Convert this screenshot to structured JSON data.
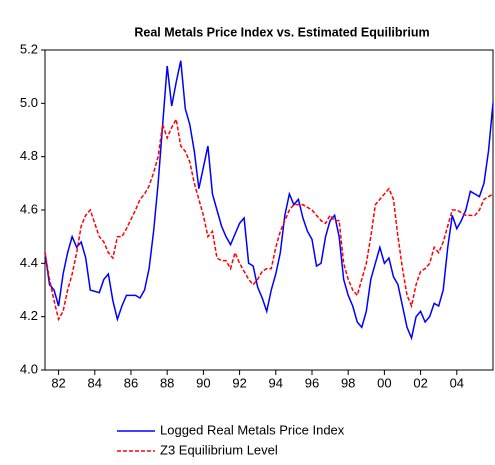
{
  "chart_data": {
    "type": "line",
    "title": "Real Metals Price Index vs. Estimated Equilibrium",
    "x": [
      1981.25,
      1981.5,
      1981.75,
      1982.0,
      1982.25,
      1982.5,
      1982.75,
      1983.0,
      1983.25,
      1983.5,
      1983.75,
      1984.25,
      1984.5,
      1984.75,
      1985.0,
      1985.25,
      1985.5,
      1985.75,
      1986.25,
      1986.5,
      1986.75,
      1987.0,
      1987.25,
      1987.5,
      1987.75,
      1988.0,
      1988.25,
      1988.5,
      1988.75,
      1989.0,
      1989.25,
      1989.5,
      1989.75,
      1990.0,
      1990.25,
      1990.5,
      1990.75,
      1991.0,
      1991.25,
      1991.5,
      1991.75,
      1992.0,
      1992.25,
      1992.5,
      1992.75,
      1993.0,
      1993.25,
      1993.5,
      1993.75,
      1994.0,
      1994.25,
      1994.5,
      1994.75,
      1995.0,
      1995.25,
      1995.5,
      1995.75,
      1996.0,
      1996.25,
      1996.5,
      1996.75,
      1997.0,
      1997.25,
      1997.5,
      1997.75,
      1998.0,
      1998.25,
      1998.5,
      1998.75,
      1999.0,
      1999.25,
      1999.5,
      1999.75,
      2000.0,
      2000.25,
      2000.5,
      2000.75,
      2001.0,
      2001.25,
      2001.5,
      2001.75,
      2002.0,
      2002.25,
      2002.5,
      2002.75,
      2003.0,
      2003.25,
      2003.5,
      2003.75,
      2004.0,
      2004.25,
      2004.5,
      2004.75,
      2005.0,
      2005.25,
      2005.5,
      2005.75,
      2006.0
    ],
    "series": [
      {
        "name": "Logged Real Metals Price Index",
        "color": "#0000ff",
        "dashed": false,
        "values": [
          4.44,
          4.32,
          4.3,
          4.24,
          4.36,
          4.44,
          4.5,
          4.46,
          4.48,
          4.42,
          4.3,
          4.29,
          4.34,
          4.36,
          4.26,
          4.19,
          4.24,
          4.28,
          4.28,
          4.27,
          4.3,
          4.38,
          4.52,
          4.7,
          4.92,
          5.14,
          4.99,
          5.08,
          5.16,
          4.98,
          4.92,
          4.82,
          4.68,
          4.76,
          4.84,
          4.66,
          4.6,
          4.54,
          4.5,
          4.47,
          4.51,
          4.55,
          4.57,
          4.4,
          4.39,
          4.31,
          4.27,
          4.22,
          4.3,
          4.36,
          4.44,
          4.58,
          4.66,
          4.62,
          4.64,
          4.57,
          4.52,
          4.49,
          4.39,
          4.4,
          4.5,
          4.56,
          4.58,
          4.5,
          4.34,
          4.28,
          4.24,
          4.18,
          4.16,
          4.22,
          4.34,
          4.4,
          4.46,
          4.4,
          4.42,
          4.35,
          4.32,
          4.24,
          4.16,
          4.12,
          4.2,
          4.22,
          4.18,
          4.2,
          4.25,
          4.24,
          4.3,
          4.46,
          4.58,
          4.53,
          4.56,
          4.6,
          4.67,
          4.66,
          4.65,
          4.7,
          4.82,
          5.0
        ]
      },
      {
        "name": "Z3 Equilibrium Level",
        "color": "#ff0000",
        "dashed": true,
        "values": [
          4.44,
          4.34,
          4.26,
          4.19,
          4.22,
          4.3,
          4.36,
          4.44,
          4.54,
          4.58,
          4.6,
          4.5,
          4.48,
          4.44,
          4.42,
          4.5,
          4.5,
          4.53,
          4.6,
          4.64,
          4.66,
          4.69,
          4.74,
          4.8,
          4.92,
          4.87,
          4.91,
          4.94,
          4.84,
          4.82,
          4.78,
          4.7,
          4.64,
          4.58,
          4.5,
          4.52,
          4.42,
          4.41,
          4.41,
          4.38,
          4.44,
          4.4,
          4.37,
          4.34,
          4.32,
          4.34,
          4.37,
          4.38,
          4.38,
          4.46,
          4.52,
          4.56,
          4.6,
          4.62,
          4.62,
          4.62,
          4.61,
          4.6,
          4.58,
          4.56,
          4.55,
          4.58,
          4.56,
          4.56,
          4.4,
          4.34,
          4.3,
          4.28,
          4.34,
          4.4,
          4.5,
          4.62,
          4.64,
          4.66,
          4.68,
          4.64,
          4.5,
          4.38,
          4.28,
          4.24,
          4.32,
          4.37,
          4.38,
          4.4,
          4.46,
          4.44,
          4.48,
          4.54,
          4.6,
          4.6,
          4.59,
          4.58,
          4.58,
          4.58,
          4.6,
          4.64,
          4.65,
          4.66
        ]
      }
    ],
    "xlim": [
      1981.25,
      2006.0
    ],
    "xticks": [
      {
        "value": 1982,
        "label": "82"
      },
      {
        "value": 1984,
        "label": "84"
      },
      {
        "value": 1986,
        "label": "86"
      },
      {
        "value": 1988,
        "label": "88"
      },
      {
        "value": 1990,
        "label": "90"
      },
      {
        "value": 1992,
        "label": "92"
      },
      {
        "value": 1994,
        "label": "94"
      },
      {
        "value": 1996,
        "label": "96"
      },
      {
        "value": 1998,
        "label": "98"
      },
      {
        "value": 2000,
        "label": "00"
      },
      {
        "value": 2002,
        "label": "02"
      },
      {
        "value": 2004,
        "label": "04"
      }
    ],
    "ylim": [
      4.0,
      5.2
    ],
    "yticks": [
      {
        "value": 4.0,
        "label": "4.0"
      },
      4.2,
      4.4,
      4.6,
      4.8,
      {
        "value": 5.0,
        "label": "5.0"
      },
      5.2
    ],
    "grid": false,
    "legend": "bottom"
  }
}
